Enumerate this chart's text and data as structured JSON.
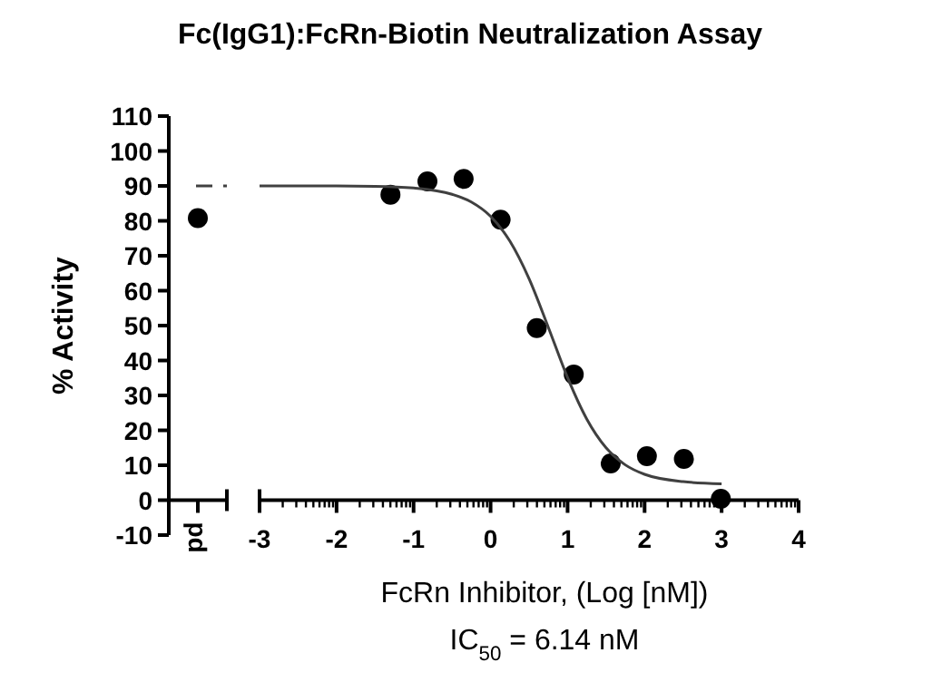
{
  "chart_data": [
    {
      "type": "scatter",
      "ylabel": "% Activity",
      "categories": [
        "pd"
      ],
      "marker": "circle",
      "ylim": [
        -10,
        110
      ],
      "yticks": [
        -10,
        0,
        10,
        20,
        30,
        40,
        50,
        60,
        70,
        80,
        90,
        100,
        110
      ],
      "series": [
        {
          "color": "#000000",
          "values": [
            80.8
          ]
        }
      ],
      "ref_lines": [
        {
          "axis": "y",
          "value": 90,
          "color": "#404040",
          "line_style": "dashed"
        }
      ]
    },
    {
      "type": "scatter",
      "title": "Fc(IgG1):FcRn-Biotin Neutralization Assay",
      "xlabel": "FcRn Inhibitor, (Log [nM])",
      "annotations": [
        "IC$_{50}$ = 6.14 nM"
      ],
      "tick_labels": "x",
      "xlim": [
        -3,
        4
      ],
      "xticks": [
        -3,
        -2,
        -1,
        0,
        1,
        2,
        3,
        4
      ],
      "ylim": [
        -10,
        110
      ],
      "series": [
        {
          "marker": "circle",
          "color": "#000000",
          "x": [
            -1.3,
            -0.82,
            -0.35,
            0.13,
            0.6,
            1.08,
            1.56,
            2.03,
            2.51,
            2.99
          ],
          "values": [
            87.5,
            91.3,
            92,
            80.3,
            49.3,
            36,
            10.5,
            12.6,
            11.8,
            0.4
          ]
        },
        {
          "type": "line",
          "color": "#404040",
          "x": [
            -3,
            -2,
            -1.5,
            -1,
            -0.5,
            -0.25,
            0,
            0.25,
            0.5,
            0.75,
            1,
            1.25,
            1.5,
            1.75,
            2,
            2.5,
            3
          ],
          "values": [
            90,
            90,
            89.9,
            89.4,
            87.6,
            85.4,
            81.3,
            74.2,
            63.4,
            49.5,
            35.1,
            23.2,
            15,
            10.1,
            7.4,
            5.3,
            4.7
          ]
        }
      ]
    }
  ]
}
